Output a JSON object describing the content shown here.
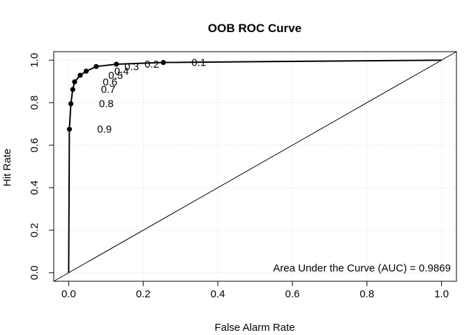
{
  "chart_data": {
    "type": "line",
    "title": "OOB ROC Curve",
    "xlabel": "False Alarm Rate",
    "ylabel": "Hit Rate",
    "xlim": [
      -0.04,
      1.04
    ],
    "ylim": [
      -0.04,
      1.04
    ],
    "xticks": [
      0,
      0.2,
      0.4,
      0.6,
      0.8,
      1
    ],
    "xtick_labels": [
      "0.0",
      "0.2",
      "0.4",
      "0.6",
      "0.8",
      "1.0"
    ],
    "yticks": [
      0,
      0.2,
      0.4,
      0.6,
      0.8,
      1
    ],
    "ytick_labels": [
      "0.0",
      "0.2",
      "0.4",
      "0.6",
      "0.8",
      "1.0"
    ],
    "grid": true,
    "curve": [
      {
        "x": 0.0,
        "y": 0.0
      },
      {
        "x": 0.002,
        "y": 0.675
      },
      {
        "x": 0.006,
        "y": 0.795
      },
      {
        "x": 0.011,
        "y": 0.862
      },
      {
        "x": 0.016,
        "y": 0.898
      },
      {
        "x": 0.031,
        "y": 0.929
      },
      {
        "x": 0.047,
        "y": 0.948
      },
      {
        "x": 0.074,
        "y": 0.97
      },
      {
        "x": 0.128,
        "y": 0.981
      },
      {
        "x": 0.254,
        "y": 0.989
      },
      {
        "x": 1.0,
        "y": 1.0
      }
    ],
    "points": [
      {
        "x": 0.002,
        "y": 0.675
      },
      {
        "x": 0.006,
        "y": 0.795
      },
      {
        "x": 0.011,
        "y": 0.862
      },
      {
        "x": 0.016,
        "y": 0.898
      },
      {
        "x": 0.031,
        "y": 0.929
      },
      {
        "x": 0.047,
        "y": 0.948
      },
      {
        "x": 0.074,
        "y": 0.97
      },
      {
        "x": 0.128,
        "y": 0.981
      },
      {
        "x": 0.254,
        "y": 0.989
      }
    ],
    "threshold_labels": [
      {
        "text": "0.9",
        "x": 0.096,
        "y": 0.675
      },
      {
        "text": "0.8",
        "x": 0.101,
        "y": 0.795
      },
      {
        "text": "0.7",
        "x": 0.106,
        "y": 0.862
      },
      {
        "text": "0.6",
        "x": 0.111,
        "y": 0.898
      },
      {
        "text": "0.5",
        "x": 0.126,
        "y": 0.929
      },
      {
        "text": "0.4",
        "x": 0.142,
        "y": 0.948
      },
      {
        "text": "0.3",
        "x": 0.169,
        "y": 0.97
      },
      {
        "text": "0.2",
        "x": 0.223,
        "y": 0.981
      },
      {
        "text": "0.1",
        "x": 0.349,
        "y": 0.989
      }
    ],
    "reference_line": {
      "x": [
        -0.04,
        1.04
      ],
      "y": [
        -0.04,
        1.04
      ]
    },
    "annotation": "Area Under the Curve (AUC) = 0.9869"
  }
}
